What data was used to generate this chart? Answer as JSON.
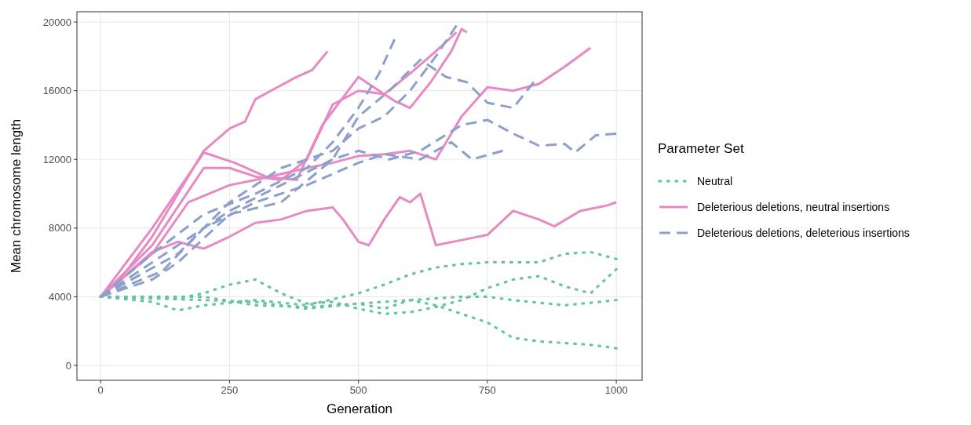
{
  "chart_data": {
    "type": "line",
    "xlabel": "Generation",
    "ylabel": "Mean chromosome length",
    "legend_title": "Parameter Set",
    "legend": "right",
    "grid": true,
    "marker": "none",
    "xlim": [
      -46,
      1050
    ],
    "ylim": [
      -870,
      20600
    ],
    "xticks": [
      0,
      250,
      500,
      750,
      1000
    ],
    "yticks": [
      0,
      4000,
      8000,
      12000,
      16000,
      20000
    ],
    "series": [
      {
        "name": "Neutral",
        "color": "#66c2a5",
        "line_style": "dotted",
        "x": [
          0,
          100,
          200,
          300,
          400,
          500,
          600,
          700,
          750,
          800,
          900,
          1000
        ],
        "values": [
          4000,
          3900,
          3800,
          3700,
          3300,
          3600,
          3800,
          4000,
          4000,
          3800,
          3500,
          3800
        ]
      },
      {
        "color": "#66c2a5",
        "line_style": "dotted",
        "x": [
          0,
          100,
          150,
          200,
          300,
          400,
          500,
          550,
          600,
          650,
          700,
          750,
          800,
          850,
          900,
          950,
          1000
        ],
        "values": [
          4000,
          3700,
          3200,
          3500,
          3800,
          3500,
          4200,
          4700,
          5300,
          5700,
          5900,
          6000,
          6000,
          6000,
          6500,
          6600,
          6200
        ]
      },
      {
        "color": "#66c2a5",
        "line_style": "dotted",
        "x": [
          0,
          100,
          200,
          300,
          400,
          500,
          550,
          600,
          650,
          700,
          750,
          800,
          850,
          900,
          950,
          1000
        ],
        "values": [
          4000,
          4000,
          4000,
          3500,
          3400,
          3600,
          3300,
          3800,
          3500,
          3000,
          2500,
          1600,
          1400,
          1300,
          1200,
          1000
        ]
      },
      {
        "color": "#66c2a5",
        "line_style": "dotted",
        "x": [
          0,
          150,
          200,
          250,
          300,
          350,
          400,
          450,
          500,
          550,
          600,
          650,
          700,
          750,
          800,
          850,
          900,
          950,
          1000
        ],
        "values": [
          4000,
          3900,
          4200,
          4700,
          5000,
          4200,
          3600,
          3700,
          3300,
          3000,
          3100,
          3400,
          3800,
          4500,
          5000,
          5200,
          4600,
          4200,
          5600
        ]
      },
      {
        "name": "Deleterious deletions, neutral insertions",
        "color": "#e78ac3",
        "line_style": "solid",
        "x": [
          0,
          50,
          100,
          150,
          200,
          250,
          280,
          300,
          330,
          380,
          410,
          440
        ],
        "values": [
          4000,
          5500,
          7500,
          10000,
          12500,
          13800,
          14200,
          15500,
          16000,
          16800,
          17200,
          18300
        ]
      },
      {
        "color": "#e78ac3",
        "line_style": "solid",
        "x": [
          0,
          100,
          200,
          260,
          320,
          380,
          430,
          480,
          500,
          540,
          570,
          600,
          640,
          680,
          700,
          710
        ],
        "values": [
          4000,
          8000,
          12400,
          11800,
          11000,
          10800,
          14000,
          16000,
          16800,
          16000,
          15400,
          15000,
          16500,
          18300,
          19600,
          19400
        ]
      },
      {
        "color": "#e78ac3",
        "line_style": "solid",
        "x": [
          0,
          100,
          200,
          250,
          300,
          350,
          400,
          450,
          500,
          550,
          600,
          650,
          690
        ],
        "values": [
          4000,
          7000,
          11500,
          11500,
          11000,
          10800,
          12000,
          15200,
          16000,
          15800,
          17000,
          18300,
          19400
        ]
      },
      {
        "color": "#e78ac3",
        "line_style": "solid",
        "x": [
          0,
          100,
          170,
          250,
          300,
          400,
          450,
          500,
          550,
          600,
          650,
          700,
          750,
          800,
          850,
          900,
          950
        ],
        "values": [
          4000,
          6500,
          9500,
          10500,
          10800,
          11500,
          11800,
          12200,
          12300,
          12500,
          12000,
          14500,
          16200,
          16000,
          16400,
          17400,
          18500
        ]
      },
      {
        "color": "#e78ac3",
        "line_style": "solid",
        "x": [
          0,
          100,
          150,
          200,
          250,
          300,
          350,
          400,
          450,
          470,
          500,
          520,
          550,
          580,
          600,
          620,
          650,
          700,
          750,
          800,
          850,
          880,
          930,
          980,
          1000
        ],
        "values": [
          4000,
          6600,
          7200,
          6800,
          7500,
          8300,
          8500,
          9000,
          9200,
          8500,
          7200,
          7000,
          8500,
          9800,
          9500,
          10000,
          7000,
          7300,
          7600,
          9000,
          8500,
          8100,
          9000,
          9300,
          9500
        ]
      },
      {
        "name": "Deleterious deletions, deleterious insertions",
        "color": "#8da0cb",
        "line_style": "dashed",
        "x": [
          0,
          100,
          200,
          300,
          400,
          450,
          500,
          540,
          570
        ],
        "values": [
          4000,
          6500,
          8800,
          10000,
          11500,
          13000,
          15000,
          17000,
          19000
        ]
      },
      {
        "color": "#8da0cb",
        "line_style": "dashed",
        "x": [
          0,
          150,
          250,
          350,
          450,
          500,
          550,
          600,
          650,
          690
        ],
        "values": [
          4000,
          6500,
          9500,
          11500,
          12500,
          13800,
          14500,
          16000,
          18000,
          19800
        ]
      },
      {
        "color": "#8da0cb",
        "line_style": "dashed",
        "x": [
          0,
          150,
          250,
          350,
          450,
          500,
          560,
          620,
          700,
          750,
          800,
          850,
          900,
          920,
          960,
          1000
        ],
        "values": [
          4000,
          7000,
          9000,
          10500,
          12000,
          12500,
          12000,
          12500,
          14000,
          14300,
          13500,
          12800,
          12900,
          12400,
          13400,
          13500
        ]
      },
      {
        "color": "#8da0cb",
        "line_style": "dashed",
        "x": [
          0,
          120,
          200,
          300,
          400,
          500,
          550,
          620,
          680,
          720,
          780
        ],
        "values": [
          4000,
          5500,
          8000,
          9500,
          10500,
          11800,
          12300,
          12000,
          13000,
          12000,
          12500
        ]
      },
      {
        "color": "#8da0cb",
        "line_style": "dashed",
        "x": [
          0,
          100,
          150,
          250,
          350,
          450,
          500,
          560,
          620,
          670,
          710,
          750,
          800,
          840
        ],
        "values": [
          4000,
          5000,
          6000,
          8800,
          9500,
          12000,
          14500,
          16000,
          17800,
          16800,
          16500,
          15300,
          15000,
          16500
        ]
      }
    ]
  }
}
